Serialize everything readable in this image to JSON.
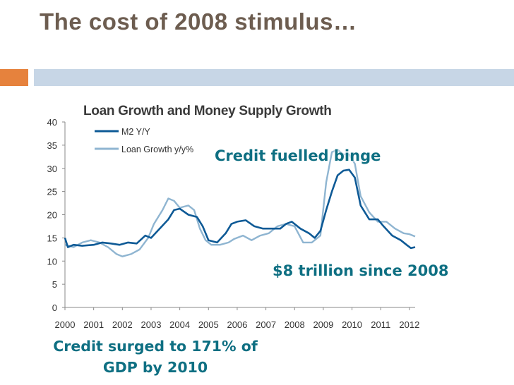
{
  "slide": {
    "title": "The cost of 2008 stimulus…",
    "accent_color": "#e6823d",
    "rule_color": "#c7d6e6"
  },
  "annotations": {
    "credit_binge": "Credit fuelled binge",
    "trillion": "$8 trillion since 2008",
    "gdp_line1": "Credit surged to 171% of",
    "gdp_line2": "GDP by 2010"
  },
  "chart_data": {
    "type": "line",
    "title": "Loan Growth and Money Supply Growth",
    "ylim": [
      0,
      40
    ],
    "yticks": [
      0,
      5,
      10,
      15,
      20,
      25,
      30,
      35,
      40
    ],
    "xlim": [
      2000,
      2012.2
    ],
    "xticks": [
      "2000",
      "2001",
      "2002",
      "2003",
      "2004",
      "2005",
      "2006",
      "2007",
      "2008",
      "2009",
      "2010",
      "2011",
      "2012"
    ],
    "grid": false,
    "legend_position": "top-left",
    "series": [
      {
        "name": "M2 Y/Y",
        "color": "#0e5a96",
        "points": [
          [
            2000.0,
            15.0
          ],
          [
            2000.1,
            13.0
          ],
          [
            2000.3,
            13.5
          ],
          [
            2000.6,
            13.3
          ],
          [
            2001.0,
            13.5
          ],
          [
            2001.3,
            14.0
          ],
          [
            2001.6,
            13.8
          ],
          [
            2001.9,
            13.5
          ],
          [
            2002.2,
            14.0
          ],
          [
            2002.5,
            13.8
          ],
          [
            2002.8,
            15.5
          ],
          [
            2003.0,
            15.0
          ],
          [
            2003.3,
            17.0
          ],
          [
            2003.6,
            19.0
          ],
          [
            2003.8,
            21.0
          ],
          [
            2004.0,
            21.3
          ],
          [
            2004.3,
            20.0
          ],
          [
            2004.6,
            19.5
          ],
          [
            2004.8,
            17.5
          ],
          [
            2005.0,
            14.5
          ],
          [
            2005.3,
            14.0
          ],
          [
            2005.6,
            16.0
          ],
          [
            2005.8,
            18.0
          ],
          [
            2006.0,
            18.5
          ],
          [
            2006.3,
            18.8
          ],
          [
            2006.6,
            17.5
          ],
          [
            2006.9,
            17.0
          ],
          [
            2007.2,
            17.0
          ],
          [
            2007.5,
            17.0
          ],
          [
            2007.7,
            18.0
          ],
          [
            2007.9,
            18.5
          ],
          [
            2008.2,
            17.0
          ],
          [
            2008.5,
            16.0
          ],
          [
            2008.7,
            15.0
          ],
          [
            2008.9,
            16.5
          ],
          [
            2009.1,
            21.0
          ],
          [
            2009.3,
            25.0
          ],
          [
            2009.5,
            28.5
          ],
          [
            2009.7,
            29.5
          ],
          [
            2009.9,
            29.7
          ],
          [
            2010.1,
            28.0
          ],
          [
            2010.3,
            22.0
          ],
          [
            2010.6,
            19.0
          ],
          [
            2010.9,
            19.0
          ],
          [
            2011.1,
            17.5
          ],
          [
            2011.4,
            15.5
          ],
          [
            2011.7,
            14.5
          ],
          [
            2011.9,
            13.5
          ],
          [
            2012.05,
            12.8
          ],
          [
            2012.2,
            13.0
          ]
        ]
      },
      {
        "name": "Loan Growth y/y%",
        "color": "#8fb5d1",
        "points": [
          [
            2000.0,
            13.5
          ],
          [
            2000.3,
            13.0
          ],
          [
            2000.6,
            14.0
          ],
          [
            2000.9,
            14.5
          ],
          [
            2001.2,
            14.0
          ],
          [
            2001.5,
            13.0
          ],
          [
            2001.8,
            11.5
          ],
          [
            2002.0,
            11.0
          ],
          [
            2002.3,
            11.5
          ],
          [
            2002.6,
            12.5
          ],
          [
            2002.9,
            15.0
          ],
          [
            2003.1,
            18.0
          ],
          [
            2003.4,
            21.0
          ],
          [
            2003.6,
            23.5
          ],
          [
            2003.8,
            23.0
          ],
          [
            2004.0,
            21.5
          ],
          [
            2004.3,
            22.0
          ],
          [
            2004.5,
            21.0
          ],
          [
            2004.7,
            17.0
          ],
          [
            2004.9,
            14.5
          ],
          [
            2005.1,
            13.5
          ],
          [
            2005.4,
            13.5
          ],
          [
            2005.7,
            14.0
          ],
          [
            2005.9,
            14.8
          ],
          [
            2006.2,
            15.5
          ],
          [
            2006.5,
            14.5
          ],
          [
            2006.8,
            15.5
          ],
          [
            2007.1,
            16.0
          ],
          [
            2007.4,
            17.5
          ],
          [
            2007.7,
            18.0
          ],
          [
            2008.0,
            17.5
          ],
          [
            2008.3,
            14.0
          ],
          [
            2008.6,
            14.0
          ],
          [
            2008.9,
            15.5
          ],
          [
            2009.1,
            27.0
          ],
          [
            2009.3,
            33.5
          ],
          [
            2009.5,
            34.0
          ],
          [
            2009.7,
            33.0
          ],
          [
            2009.9,
            33.0
          ],
          [
            2010.1,
            31.0
          ],
          [
            2010.3,
            24.0
          ],
          [
            2010.6,
            20.5
          ],
          [
            2010.9,
            18.5
          ],
          [
            2011.2,
            18.5
          ],
          [
            2011.5,
            17.0
          ],
          [
            2011.8,
            16.0
          ],
          [
            2012.0,
            15.8
          ],
          [
            2012.2,
            15.3
          ]
        ]
      }
    ]
  }
}
